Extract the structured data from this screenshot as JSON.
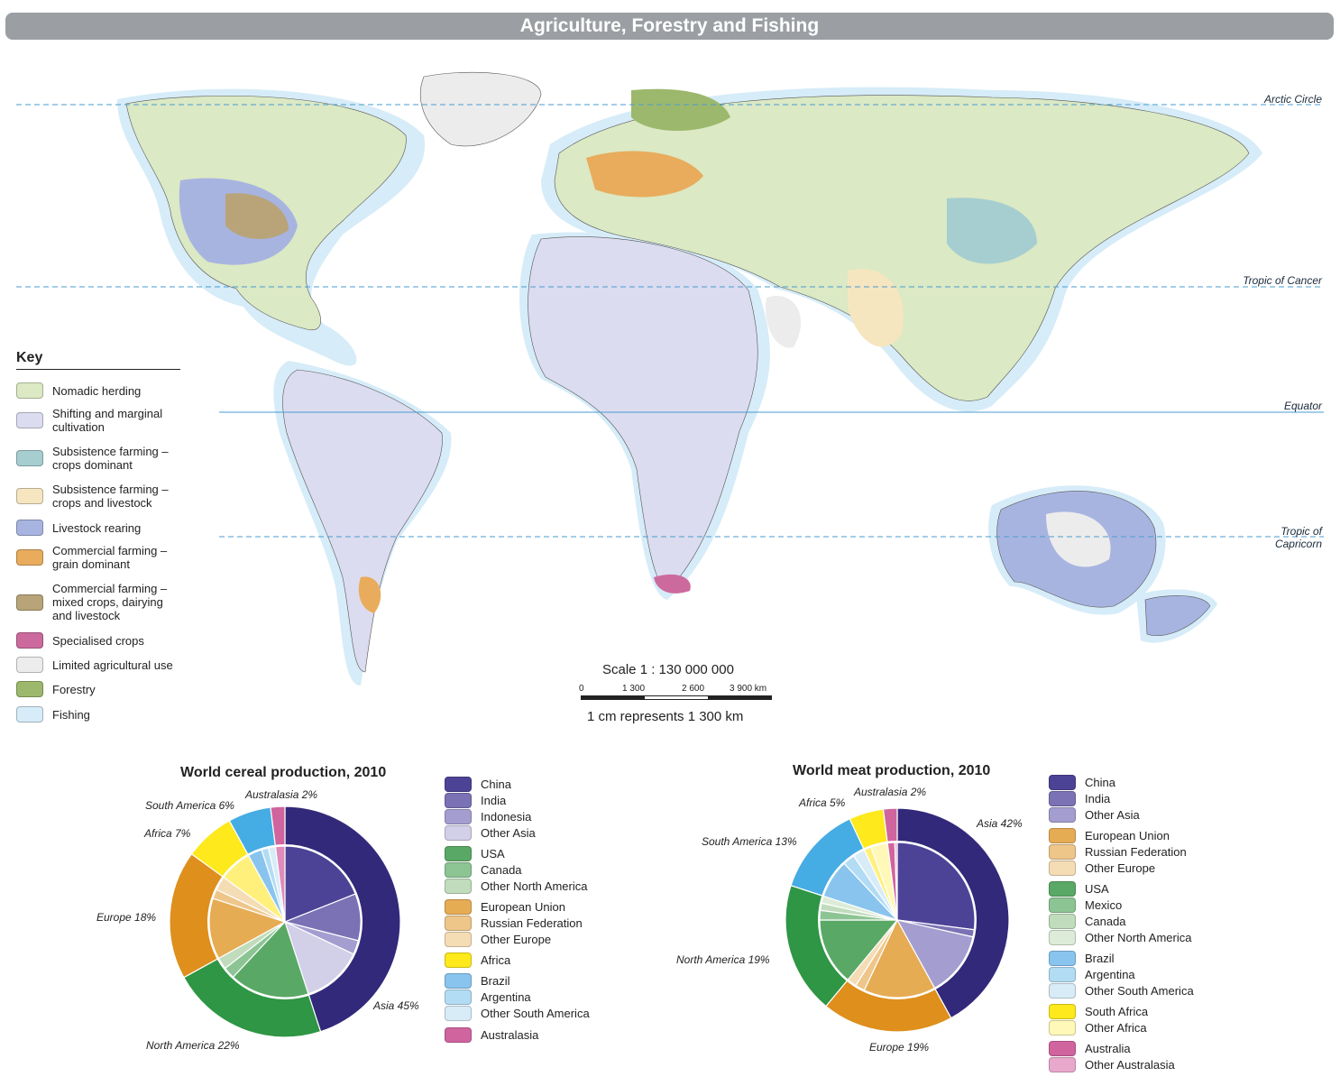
{
  "title": "Agriculture, Forestry and Fishing",
  "lines": {
    "arctic": "Arctic Circle",
    "cancer": "Tropic of Cancer",
    "equator": "Equator",
    "capricorn_1": "Tropic of",
    "capricorn_2": "Capricorn"
  },
  "key": {
    "title": "Key",
    "items": [
      {
        "label": "Nomadic herding",
        "color": "#dbe9c4"
      },
      {
        "label": "Shifting and marginal cultivation",
        "color": "#dcdcf0"
      },
      {
        "label": "Subsistence farming – crops dominant",
        "color": "#a6ced0"
      },
      {
        "label": "Subsistence farming – crops and livestock",
        "color": "#f5e6c0"
      },
      {
        "label": "Livestock rearing",
        "color": "#a8b4e0"
      },
      {
        "label": "Commercial farming – grain dominant",
        "color": "#e8ac5c"
      },
      {
        "label": "Commercial farming – mixed crops, dairying and livestock",
        "color": "#b8a478"
      },
      {
        "label": "Specialised crops",
        "color": "#cc6a9e"
      },
      {
        "label": "Limited agricultural use",
        "color": "#ececec"
      },
      {
        "label": "Forestry",
        "color": "#9cb86c"
      },
      {
        "label": "Fishing",
        "color": "#d6ecf8"
      }
    ]
  },
  "scale": {
    "title": "Scale 1 : 130 000 000",
    "ticks": [
      "0",
      "1 300",
      "2 600",
      "3 900 km"
    ],
    "note": "1 cm represents 1 300 km"
  },
  "chart_data": [
    {
      "type": "pie",
      "title": "World cereal production, 2010",
      "outer": [
        {
          "name": "Asia",
          "label": "Asia 45%",
          "value": 45,
          "color": "#32297a"
        },
        {
          "name": "North America",
          "label": "North America 22%",
          "value": 22,
          "color": "#2e9644"
        },
        {
          "name": "Europe",
          "label": "Europe 18%",
          "value": 18,
          "color": "#de8f1c"
        },
        {
          "name": "Africa",
          "label": "Africa 7%",
          "value": 7,
          "color": "#fde91c"
        },
        {
          "name": "South America",
          "label": "South America 6%",
          "value": 6,
          "color": "#46ace4"
        },
        {
          "name": "Australasia",
          "label": "Australasia 2%",
          "value": 2,
          "color": "#d0649e"
        }
      ],
      "inner": [
        {
          "name": "China",
          "value": 19,
          "color": "#4d4396"
        },
        {
          "name": "India",
          "value": 10,
          "color": "#7a72b4"
        },
        {
          "name": "Indonesia",
          "value": 3,
          "color": "#a49ed0"
        },
        {
          "name": "Other Asia",
          "value": 13,
          "color": "#d2cfe8"
        },
        {
          "name": "USA",
          "value": 17,
          "color": "#5aa866"
        },
        {
          "name": "Canada",
          "value": 2.5,
          "color": "#8dc494"
        },
        {
          "name": "Other North America",
          "value": 2.5,
          "color": "#c0dcbc"
        },
        {
          "name": "European Union",
          "value": 13,
          "color": "#e6ac54"
        },
        {
          "name": "Russian Federation",
          "value": 2,
          "color": "#eec68a"
        },
        {
          "name": "Other Europe",
          "value": 3,
          "color": "#f4dcb4"
        },
        {
          "name": "Africa",
          "value": 7,
          "color": "#fff07c"
        },
        {
          "name": "Brazil",
          "value": 3,
          "color": "#88c4ee"
        },
        {
          "name": "Argentina",
          "value": 1.5,
          "color": "#b2dcf4"
        },
        {
          "name": "Other South America",
          "value": 1.5,
          "color": "#d8ecf8"
        },
        {
          "name": "Australasia",
          "value": 2,
          "color": "#e08cba"
        }
      ],
      "legend": [
        {
          "name": "China",
          "color": "#4d4396"
        },
        {
          "name": "India",
          "color": "#7a72b4"
        },
        {
          "name": "Indonesia",
          "color": "#a49ed0"
        },
        {
          "name": "Other Asia",
          "color": "#d2cfe8"
        },
        {
          "name": "USA",
          "color": "#5aa866"
        },
        {
          "name": "Canada",
          "color": "#8dc494"
        },
        {
          "name": "Other North America",
          "color": "#c0dcbc"
        },
        {
          "name": "European Union",
          "color": "#e6ac54"
        },
        {
          "name": "Russian Federation",
          "color": "#eec68a"
        },
        {
          "name": "Other Europe",
          "color": "#f4dcb4"
        },
        {
          "name": "Africa",
          "color": "#fde91c"
        },
        {
          "name": "Brazil",
          "color": "#88c4ee"
        },
        {
          "name": "Argentina",
          "color": "#b2dcf4"
        },
        {
          "name": "Other South America",
          "color": "#d8ecf8"
        },
        {
          "name": "Australasia",
          "color": "#d0649e"
        }
      ]
    },
    {
      "type": "pie",
      "title": "World meat production, 2010",
      "outer": [
        {
          "name": "Asia",
          "label": "Asia 42%",
          "value": 42,
          "color": "#32297a"
        },
        {
          "name": "Europe",
          "label": "Europe 19%",
          "value": 19,
          "color": "#de8f1c"
        },
        {
          "name": "North America",
          "label": "North America 19%",
          "value": 19,
          "color": "#2e9644"
        },
        {
          "name": "South America",
          "label": "South America 13%",
          "value": 13,
          "color": "#46ace4"
        },
        {
          "name": "Africa",
          "label": "Africa 5%",
          "value": 5,
          "color": "#fde91c"
        },
        {
          "name": "Australasia",
          "label": "Australasia 2%",
          "value": 2,
          "color": "#d0649e"
        }
      ],
      "inner": [
        {
          "name": "China",
          "value": 27,
          "color": "#4d4396"
        },
        {
          "name": "India",
          "value": 1.5,
          "color": "#7a72b4"
        },
        {
          "name": "Other Asia",
          "value": 13.5,
          "color": "#a49ed0"
        },
        {
          "name": "European Union",
          "value": 15,
          "color": "#e6ac54"
        },
        {
          "name": "Russian Federation",
          "value": 2,
          "color": "#eec68a"
        },
        {
          "name": "Other Europe",
          "value": 2,
          "color": "#f4dcb4"
        },
        {
          "name": "USA",
          "value": 14,
          "color": "#5aa866"
        },
        {
          "name": "Mexico",
          "value": 2,
          "color": "#8dc494"
        },
        {
          "name": "Canada",
          "value": 1.5,
          "color": "#c0dcbc"
        },
        {
          "name": "Other North America",
          "value": 1.5,
          "color": "#dcecd8"
        },
        {
          "name": "Brazil",
          "value": 8,
          "color": "#88c4ee"
        },
        {
          "name": "Argentina",
          "value": 2.5,
          "color": "#b2dcf4"
        },
        {
          "name": "Other South America",
          "value": 2.5,
          "color": "#d8ecf8"
        },
        {
          "name": "South Africa",
          "value": 1.5,
          "color": "#fff07c"
        },
        {
          "name": "Other Africa",
          "value": 3.5,
          "color": "#fff8b8"
        },
        {
          "name": "Australia",
          "value": 1.5,
          "color": "#d0649e"
        },
        {
          "name": "Other Australasia",
          "value": 0.5,
          "color": "#e8a8cc"
        }
      ],
      "legend": [
        {
          "name": "China",
          "color": "#4d4396"
        },
        {
          "name": "India",
          "color": "#7a72b4"
        },
        {
          "name": "Other Asia",
          "color": "#a49ed0"
        },
        {
          "name": "European Union",
          "color": "#e6ac54"
        },
        {
          "name": "Russian Federation",
          "color": "#eec68a"
        },
        {
          "name": "Other Europe",
          "color": "#f4dcb4"
        },
        {
          "name": "USA",
          "color": "#5aa866"
        },
        {
          "name": "Mexico",
          "color": "#8dc494"
        },
        {
          "name": "Canada",
          "color": "#c0dcbc"
        },
        {
          "name": "Other North America",
          "color": "#dcecd8"
        },
        {
          "name": "Brazil",
          "color": "#88c4ee"
        },
        {
          "name": "Argentina",
          "color": "#b2dcf4"
        },
        {
          "name": "Other South America",
          "color": "#d8ecf8"
        },
        {
          "name": "South Africa",
          "color": "#fde91c"
        },
        {
          "name": "Other Africa",
          "color": "#fff8b8"
        },
        {
          "name": "Australia",
          "color": "#d0649e"
        },
        {
          "name": "Other Australasia",
          "color": "#e8a8cc"
        }
      ]
    }
  ]
}
